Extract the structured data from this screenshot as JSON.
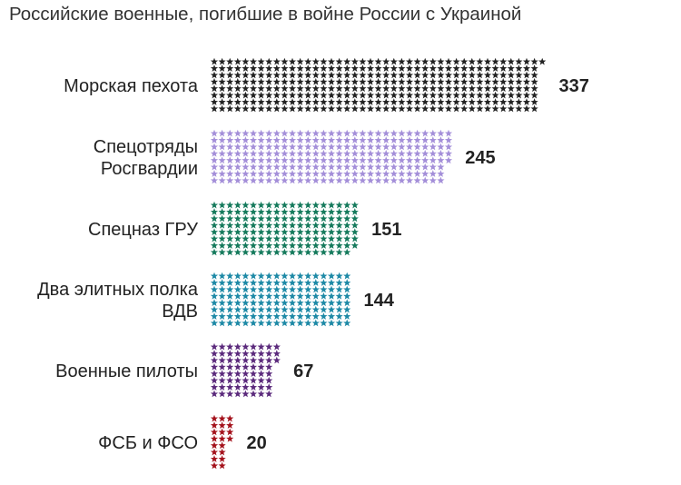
{
  "title": "Российские военные, погибшие в войне России с Украиной",
  "chart_data": {
    "type": "bar",
    "title": "Российские военные, погибшие в войне России с Украиной",
    "orientation": "horizontal",
    "mark": "unit-stars",
    "categories": [
      [
        "Морская пехота"
      ],
      [
        "Спецотряды",
        "Росгвардии"
      ],
      [
        "Спецназ ГРУ"
      ],
      [
        "Два элитных полка",
        "ВДВ"
      ],
      [
        "Военные пилоты"
      ],
      [
        "ФСБ и ФСО"
      ]
    ],
    "values": [
      337,
      245,
      151,
      144,
      67,
      20
    ],
    "colors": [
      "#222222",
      "#a48fd9",
      "#157a5c",
      "#1d89a6",
      "#5b2a7c",
      "#a4121c"
    ]
  }
}
